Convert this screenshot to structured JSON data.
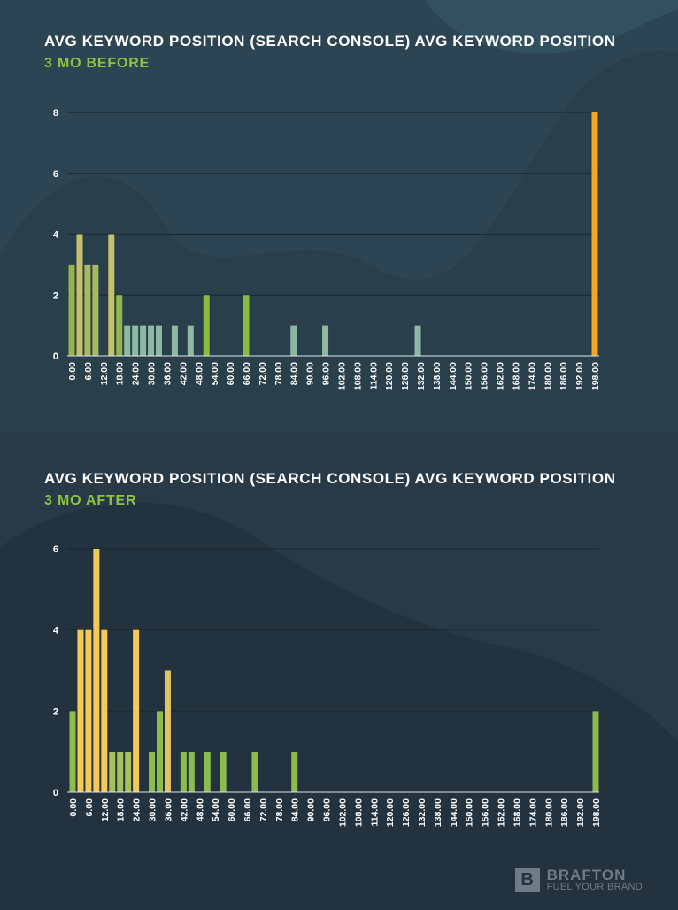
{
  "chart_data": [
    {
      "type": "bar",
      "title": "AVG KEYWORD POSITION (SEARCH CONSOLE) AVG KEYWORD POSITION",
      "subtitle": "3 MO BEFORE",
      "xlabel": "",
      "ylabel": "",
      "ylim": [
        0,
        8
      ],
      "yticks": [
        0,
        2,
        4,
        6,
        8
      ],
      "x_range": [
        0,
        198
      ],
      "x_ticks": [
        "0.00",
        "6.00",
        "12.00",
        "18.00",
        "24.00",
        "30.00",
        "36.00",
        "42.00",
        "48.00",
        "54.00",
        "60.00",
        "66.00",
        "72.00",
        "78.00",
        "84.00",
        "90.00",
        "96.00",
        "102.00",
        "108.00",
        "114.00",
        "120.00",
        "126.00",
        "132.00",
        "138.00",
        "144.00",
        "150.00",
        "156.00",
        "162.00",
        "168.00",
        "174.00",
        "180.00",
        "186.00",
        "192.00",
        "198.00"
      ],
      "grid": true,
      "bars": [
        {
          "x": 0,
          "value": 3,
          "color": "#93b64c"
        },
        {
          "x": 3,
          "value": 4,
          "color": "#c7c06a"
        },
        {
          "x": 6,
          "value": 3,
          "color": "#a7b95e"
        },
        {
          "x": 9,
          "value": 3,
          "color": "#a7b95e"
        },
        {
          "x": 15,
          "value": 4,
          "color": "#c7c06a"
        },
        {
          "x": 18,
          "value": 2,
          "color": "#93b64c"
        },
        {
          "x": 21,
          "value": 1,
          "color": "#8fb8a2"
        },
        {
          "x": 24,
          "value": 1,
          "color": "#8fb8a2"
        },
        {
          "x": 27,
          "value": 1,
          "color": "#8fb8a2"
        },
        {
          "x": 30,
          "value": 1,
          "color": "#8fb8a2"
        },
        {
          "x": 33,
          "value": 1,
          "color": "#8fb8a2"
        },
        {
          "x": 39,
          "value": 1,
          "color": "#8fb8a2"
        },
        {
          "x": 45,
          "value": 1,
          "color": "#8fb8a2"
        },
        {
          "x": 51,
          "value": 2,
          "color": "#8abd3d"
        },
        {
          "x": 66,
          "value": 2,
          "color": "#8abd3d"
        },
        {
          "x": 84,
          "value": 1,
          "color": "#8fb8a2"
        },
        {
          "x": 96,
          "value": 1,
          "color": "#8fb8a2"
        },
        {
          "x": 131,
          "value": 1,
          "color": "#8fb8a2"
        },
        {
          "x": 198,
          "value": 8,
          "color": "#f5a623"
        }
      ]
    },
    {
      "type": "bar",
      "title": "AVG KEYWORD POSITION (SEARCH CONSOLE) AVG KEYWORD POSITION",
      "subtitle": "3 MO AFTER",
      "xlabel": "",
      "ylabel": "",
      "ylim": [
        0,
        6
      ],
      "yticks": [
        0,
        2,
        4,
        6
      ],
      "x_range": [
        0,
        198
      ],
      "x_ticks": [
        "0.00",
        "6.00",
        "12.00",
        "18.00",
        "24.00",
        "30.00",
        "36.00",
        "42.00",
        "48.00",
        "54.00",
        "60.00",
        "66.00",
        "72.00",
        "78.00",
        "84.00",
        "90.00",
        "96.00",
        "102.00",
        "108.00",
        "114.00",
        "120.00",
        "126.00",
        "132.00",
        "138.00",
        "144.00",
        "150.00",
        "156.00",
        "162.00",
        "168.00",
        "174.00",
        "180.00",
        "186.00",
        "192.00",
        "198.00"
      ],
      "grid": true,
      "bars": [
        {
          "x": 0,
          "value": 2,
          "color": "#8dbb4c"
        },
        {
          "x": 3,
          "value": 4,
          "color": "#f5c85a"
        },
        {
          "x": 6,
          "value": 4,
          "color": "#f5c85a"
        },
        {
          "x": 9,
          "value": 6,
          "color": "#f5c85a"
        },
        {
          "x": 12,
          "value": 4,
          "color": "#f5c85a"
        },
        {
          "x": 15,
          "value": 1,
          "color": "#a7c05c"
        },
        {
          "x": 18,
          "value": 1,
          "color": "#a7c05c"
        },
        {
          "x": 21,
          "value": 1,
          "color": "#a7c05c"
        },
        {
          "x": 24,
          "value": 4,
          "color": "#f5c85a"
        },
        {
          "x": 30,
          "value": 1,
          "color": "#8dbb4c"
        },
        {
          "x": 33,
          "value": 2,
          "color": "#8dbb4c"
        },
        {
          "x": 36,
          "value": 3,
          "color": "#e0c463"
        },
        {
          "x": 42,
          "value": 1,
          "color": "#8dbb4c"
        },
        {
          "x": 45,
          "value": 1,
          "color": "#8dbb4c"
        },
        {
          "x": 51,
          "value": 1,
          "color": "#8dbb4c"
        },
        {
          "x": 57,
          "value": 1,
          "color": "#8dbb4c"
        },
        {
          "x": 69,
          "value": 1,
          "color": "#8dbb4c"
        },
        {
          "x": 84,
          "value": 1,
          "color": "#8dbb4c"
        },
        {
          "x": 198,
          "value": 2,
          "color": "#8dbb4c"
        }
      ]
    }
  ],
  "colors": {
    "subtitle": "#8cc63f",
    "grid": "#1c2a33",
    "axis": "#dfe6ea",
    "tick_label": "#ffffff"
  },
  "logo": {
    "mark": "B",
    "name": "BRAFTON",
    "tagline": "FUEL YOUR BRAND"
  }
}
